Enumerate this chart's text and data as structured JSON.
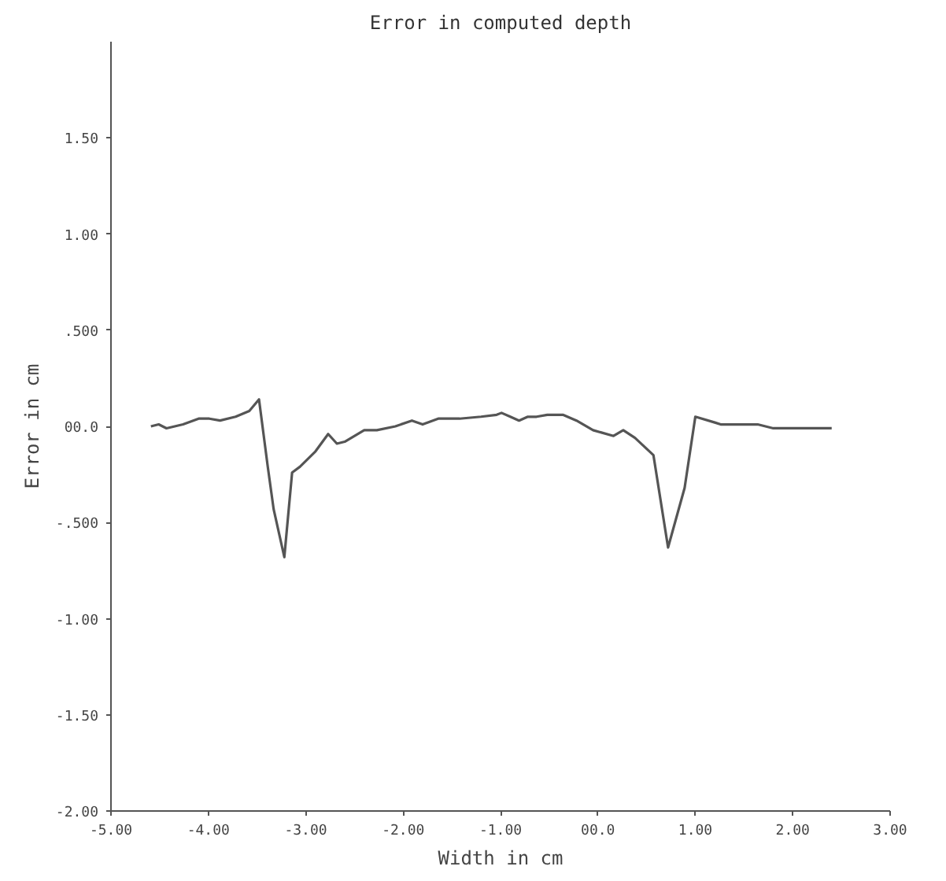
{
  "chart_data": {
    "type": "line",
    "title": "Error in computed depth",
    "xlabel": "Width in cm",
    "ylabel": "Error in cm",
    "xlim": [
      -5,
      3
    ],
    "ylim": [
      -2,
      2
    ],
    "xticks": [
      {
        "value": -5,
        "label": "-5.00"
      },
      {
        "value": -4,
        "label": "-4.00"
      },
      {
        "value": -3,
        "label": "-3.00"
      },
      {
        "value": -2,
        "label": "-2.00"
      },
      {
        "value": -1,
        "label": "-1.00"
      },
      {
        "value": 0,
        "label": "00.0"
      },
      {
        "value": 1,
        "label": "1.00"
      },
      {
        "value": 2,
        "label": "2.00"
      },
      {
        "value": 3,
        "label": "3.00"
      }
    ],
    "yticks": [
      {
        "value": -2,
        "label": "-2.00"
      },
      {
        "value": -1.5,
        "label": "-1.50"
      },
      {
        "value": -1,
        "label": "-1.00"
      },
      {
        "value": -0.5,
        "label": "-.500"
      },
      {
        "value": 0,
        "label": "00.0"
      },
      {
        "value": 0.5,
        "label": ".500"
      },
      {
        "value": 1,
        "label": "1.00"
      },
      {
        "value": 1.5,
        "label": "1.50"
      }
    ],
    "grid": false,
    "marker": "none",
    "line_style": "solid",
    "series": [
      {
        "color": "#555555",
        "x": [
          -4.59,
          -4.51,
          -4.43,
          -4.26,
          -4.1,
          -3.99,
          -3.88,
          -3.72,
          -3.58,
          -3.48,
          -3.39,
          -3.33,
          -3.22,
          -3.14,
          -3.06,
          -2.9,
          -2.77,
          -2.68,
          -2.6,
          -2.4,
          -2.27,
          -2.08,
          -1.91,
          -1.8,
          -1.64,
          -1.42,
          -1.2,
          -1.04,
          -0.99,
          -0.9,
          -0.81,
          -0.72,
          -0.63,
          -0.52,
          -0.36,
          -0.22,
          -0.05,
          0.16,
          0.26,
          0.38,
          0.57,
          0.72,
          0.89,
          1.0,
          1.2,
          1.26,
          1.64,
          1.8,
          2.19,
          2.4
        ],
        "values": [
          0.0,
          0.01,
          -0.01,
          0.01,
          0.04,
          0.04,
          0.03,
          0.05,
          0.08,
          0.14,
          -0.21,
          -0.43,
          -0.68,
          -0.24,
          -0.21,
          -0.13,
          -0.04,
          -0.09,
          -0.08,
          -0.02,
          -0.02,
          0.0,
          0.03,
          0.01,
          0.04,
          0.04,
          0.05,
          0.06,
          0.07,
          0.05,
          0.03,
          0.05,
          0.05,
          0.06,
          0.06,
          0.03,
          -0.02,
          -0.05,
          -0.02,
          -0.06,
          -0.15,
          -0.63,
          -0.32,
          0.05,
          0.02,
          0.01,
          0.01,
          -0.01,
          -0.01,
          -0.01
        ]
      }
    ]
  }
}
